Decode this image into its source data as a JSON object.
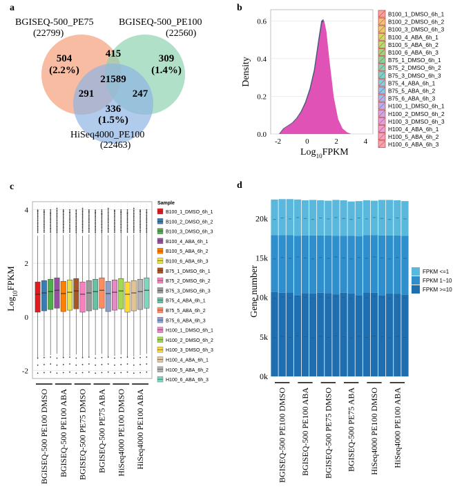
{
  "panel_labels": {
    "a": "a",
    "b": "b",
    "c": "c",
    "d": "d"
  },
  "chart_data": [
    {
      "type": "venn",
      "panel": "a",
      "sets": [
        {
          "name": "BGISEQ-500_PE75",
          "total": "(22799)",
          "color": "#f4a582"
        },
        {
          "name": "BGISEQ-500_PE100",
          "total": "(22560)",
          "color": "#8fd3b0"
        },
        {
          "name": "HiSeq4000_PE100",
          "total": "(22463)",
          "color": "#8fb5e3"
        }
      ],
      "regions": {
        "only_pe75": "504",
        "only_pe75_pct": "(2.2%)",
        "only_pe100": "309",
        "only_pe100_pct": "(1.4%)",
        "only_hiseq": "336",
        "only_hiseq_pct": "(1.5%)",
        "pe75_pe100": "415",
        "pe75_hiseq": "291",
        "pe100_hiseq": "247",
        "all": "21589"
      }
    },
    {
      "type": "area",
      "panel": "b",
      "xlabel": "Log10FPKM",
      "xlabel_base": "Log",
      "xlabel_sub": "10",
      "xlabel_rest": "FPKM",
      "ylabel": "Density",
      "xlim": [
        -2.5,
        4.5
      ],
      "ylim": [
        0,
        0.66
      ],
      "xticks": [
        "-2",
        "0",
        "2",
        "4"
      ],
      "yticks": [
        "0.0",
        "0.2",
        "0.4",
        "0.6"
      ],
      "x": [
        -1.9,
        -1.6,
        -1.3,
        -1.0,
        -0.7,
        -0.4,
        -0.1,
        0.2,
        0.5,
        0.8,
        1.0,
        1.15,
        1.3,
        1.5,
        1.8,
        2.1,
        2.4,
        2.7,
        3.0
      ],
      "density": [
        0.0,
        0.03,
        0.045,
        0.06,
        0.085,
        0.12,
        0.17,
        0.24,
        0.34,
        0.5,
        0.6,
        0.61,
        0.55,
        0.4,
        0.2,
        0.08,
        0.03,
        0.01,
        0.0
      ],
      "fill": "#e052b5",
      "legend": [
        "B100_1_DMSO_6h_1",
        "B100_2_DMSO_6h_2",
        "B100_3_DMSO_6h_3",
        "B100_4_ABA_6h_1",
        "B100_5_ABA_6h_2",
        "B100_6_ABA_6h_3",
        "B75_1_DMSO_6h_1",
        "B75_2_DMSO_6h_2",
        "B75_3_DMSO_6h_3",
        "B75_4_ABA_6h_1",
        "B75_5_ABA_6h_2",
        "B75_6_ABA_6h_3",
        "H100_1_DMSO_6h_1",
        "H100_2_DMSO_6h_2",
        "H100_3_DMSO_6h_3",
        "H100_4_ABA_6h_1",
        "H100_5_ABA_6h_2",
        "H100_6_ABA_6h_3"
      ],
      "legend_colors": [
        "#f8a29b",
        "#f2c07a",
        "#e3cf6c",
        "#cfd96a",
        "#b4dd72",
        "#98d57d",
        "#86d49a",
        "#7cd5b8",
        "#78d4cf",
        "#7fd0e3",
        "#8cc6ef",
        "#a0bbf2",
        "#b7b0f0",
        "#caa8ec",
        "#dca3e3",
        "#eaa2d6",
        "#f2a3c4",
        "#f7a3b0"
      ]
    },
    {
      "type": "boxplot",
      "panel": "c",
      "ylabel": "Log10FPKM",
      "ylabel_base": "Log",
      "ylabel_sub": "10",
      "ylabel_rest": "FPKM",
      "ylim": [
        -2.3,
        4.3
      ],
      "yticks": [
        -2,
        0,
        2,
        4
      ],
      "ytick_labels": [
        "-2",
        "0",
        "2",
        "4"
      ],
      "box": {
        "q1": 0.25,
        "median": 0.92,
        "q3": 1.38,
        "whisker_low": -1.45,
        "whisker_high": 3.1
      },
      "samples": [
        "B100_1_DMSO_6h_1",
        "B100_2_DMSO_6h_2",
        "B100_3_DMSO_6h_3",
        "B100_4_ABA_6h_1",
        "B100_5_ABA_6h_2",
        "B100_6_ABA_6h_3",
        "B75_1_DMSO_6h_1",
        "B75_2_DMSO_6h_2",
        "B75_3_DMSO_6h_3",
        "B75_4_ABA_6h_1",
        "B75_5_ABA_6h_2",
        "B75_6_ABA_6h_3",
        "H100_1_DMSO_6h_1",
        "H100_2_DMSO_6h_2",
        "H100_3_DMSO_6h_3",
        "H100_4_ABA_6h_1",
        "H100_5_ABA_6h_2",
        "H100_6_ABA_6h_3"
      ],
      "colors": [
        "#e41a1c",
        "#377eb8",
        "#4daf4a",
        "#984ea3",
        "#ff7f00",
        "#e6e04a",
        "#a65628",
        "#f781bf",
        "#999999",
        "#66c2a5",
        "#fc8d62",
        "#8da0cb",
        "#e78ac3",
        "#a6d854",
        "#ffd92f",
        "#e5c494",
        "#b3b3b3",
        "#7fd6c0"
      ],
      "legend_title": "Sample",
      "groups": [
        "BGISEQ-500 PE100 DMSO",
        "BGISEQ-500 PE100 ABA",
        "BGISEQ-500 PE75 DMSO",
        "BGISEQ-500 PE75 ABA",
        "HiSeq4000 PE100 DMSO",
        "HiSeq4000 PE100 ABA"
      ]
    },
    {
      "type": "bar",
      "stacked": true,
      "panel": "d",
      "ylabel": "Gene number",
      "ylim": [
        0,
        23000
      ],
      "yticks": [
        0,
        5000,
        10000,
        15000,
        20000
      ],
      "ytick_labels": [
        "0k",
        "5k",
        "10k",
        "15k",
        "20k"
      ],
      "series": [
        {
          "name": "FPKM >=10",
          "color": "#1f6fb0",
          "values": [
            10700,
            10600,
            10650,
            10300,
            10550,
            10500,
            10600,
            10550,
            10400,
            10600,
            10500,
            10300,
            10650,
            10600,
            10300,
            10500,
            10450,
            10350
          ]
        },
        {
          "name": "FPKM 1~10",
          "color": "#2e8fcc",
          "values": [
            7200,
            7300,
            7250,
            7500,
            7300,
            7350,
            7250,
            7300,
            7400,
            7200,
            7300,
            7450,
            7250,
            7300,
            7550,
            7350,
            7400,
            7450
          ]
        },
        {
          "name": "FPKM <=1",
          "color": "#5ab8dd",
          "values": [
            4500,
            4550,
            4550,
            4600,
            4450,
            4500,
            4450,
            4400,
            4550,
            4500,
            4350,
            4450,
            4400,
            4350,
            4500,
            4500,
            4450,
            4400
          ]
        }
      ],
      "legend": [
        "FPKM <=1",
        "FPKM 1~10",
        "FPKM >=10"
      ],
      "legend_colors": [
        "#5ab8dd",
        "#2e8fcc",
        "#1f6fb0"
      ],
      "groups": [
        "BGISEQ-500 PE100 DMSO",
        "BGISEQ-500 PE100 ABA",
        "BGISEQ-500 PE75 DMSO",
        "BGISEQ-500 PE75 ABA",
        "HiSeq4000 PE100 DMSO",
        "HiSeq4000 PE100 ABA"
      ]
    }
  ]
}
